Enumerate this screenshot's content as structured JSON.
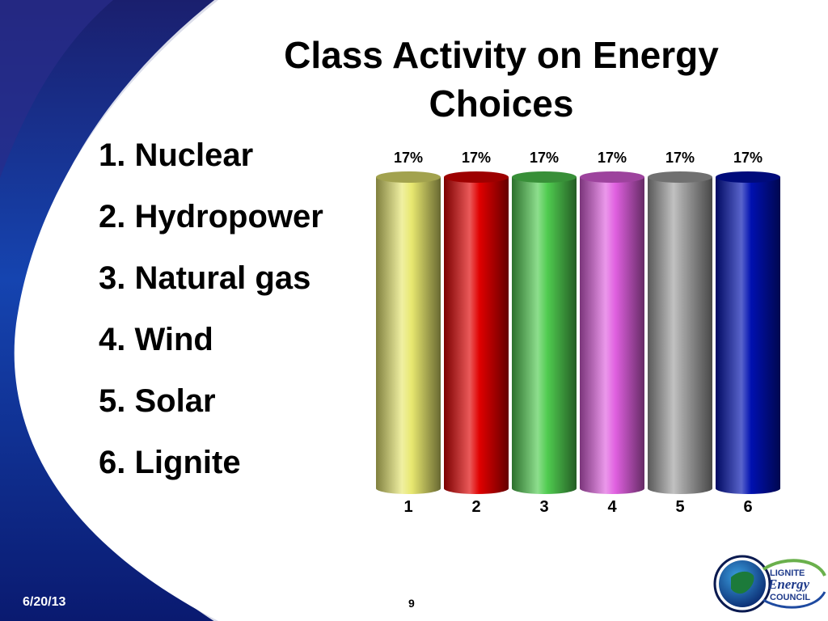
{
  "slide": {
    "title": "Class Activity on Energy Choices",
    "options": [
      "1. Nuclear",
      "2. Hydropower",
      "3. Natural gas",
      "4. Wind",
      "5. Solar",
      "6. Lignite"
    ],
    "date": "6/20/13",
    "page_number": "9",
    "logo": {
      "line1": "LIGNITE",
      "line2": "Energy",
      "line3": "COUNCIL"
    }
  },
  "chart_data": {
    "type": "bar",
    "categories": [
      "1",
      "2",
      "3",
      "4",
      "5",
      "6"
    ],
    "values": [
      17,
      17,
      17,
      17,
      17,
      17
    ],
    "value_labels": [
      "17%",
      "17%",
      "17%",
      "17%",
      "17%",
      "17%"
    ],
    "colors": [
      "#e8e870",
      "#e00000",
      "#50cc50",
      "#e060e0",
      "#a0a0a0",
      "#0010b0"
    ],
    "ylim": [
      0,
      17
    ],
    "grid": false,
    "legend": "none"
  }
}
